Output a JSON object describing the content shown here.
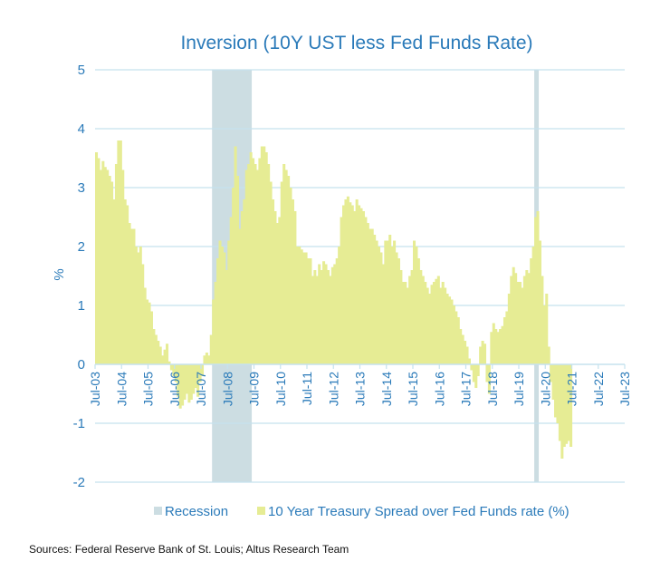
{
  "chart_data": {
    "type": "area",
    "title": "Inversion (10Y UST less Fed Funds Rate)",
    "xlabel": "",
    "ylabel": "%",
    "ylim": [
      -2,
      5
    ],
    "yticks": [
      "5",
      "4",
      "3",
      "2",
      "1",
      "0",
      "-1",
      "-2"
    ],
    "ytick_values": [
      5,
      4,
      3,
      2,
      1,
      0,
      -1,
      -2
    ],
    "grid": true,
    "legend_position": "bottom",
    "x_start": "2003-07",
    "x_end": "2023-07",
    "xtick_labels": [
      "Jul-03",
      "Jul-04",
      "Jul-05",
      "Jul-06",
      "Jul-07",
      "Jul-08",
      "Jul-09",
      "Jul-10",
      "Jul-11",
      "Jul-12",
      "Jul-13",
      "Jul-14",
      "Jul-15",
      "Jul-16",
      "Jul-17",
      "Jul-18",
      "Jul-19",
      "Jul-20",
      "Jul-21",
      "Jul-22",
      "Jul-23"
    ],
    "recessions": [
      {
        "name": "Recession",
        "start": "2007-12",
        "end": "2009-06"
      },
      {
        "name": "Recession",
        "start": "2020-02",
        "end": "2020-04"
      }
    ],
    "series": [
      {
        "name": "10 Year Treasury Spread over Fed Funds rate (%)",
        "color": "#e6ec94",
        "frequency": "monthly",
        "start": "2003-07",
        "values": [
          3.6,
          3.5,
          3.3,
          3.45,
          3.35,
          3.3,
          3.2,
          3.1,
          2.8,
          3.4,
          3.8,
          3.8,
          3.3,
          2.8,
          2.7,
          2.4,
          2.3,
          2.3,
          2.0,
          1.9,
          2.0,
          1.7,
          1.3,
          1.1,
          1.05,
          0.9,
          0.6,
          0.5,
          0.4,
          0.3,
          0.15,
          0.25,
          0.35,
          0.05,
          -0.1,
          -0.2,
          -0.3,
          -0.55,
          -0.75,
          -0.7,
          -0.6,
          -0.5,
          -0.65,
          -0.6,
          -0.5,
          -0.4,
          -0.55,
          -0.3,
          -0.2,
          0.15,
          0.2,
          0.15,
          0.5,
          1.1,
          1.4,
          1.8,
          2.1,
          2.0,
          1.9,
          1.6,
          2.1,
          2.5,
          3.0,
          3.7,
          3.2,
          2.3,
          2.6,
          2.8,
          3.3,
          3.4,
          3.6,
          3.5,
          3.4,
          3.3,
          3.5,
          3.7,
          3.7,
          3.6,
          3.4,
          3.1,
          2.8,
          2.6,
          2.4,
          2.5,
          3.1,
          3.4,
          3.3,
          3.2,
          3.0,
          2.8,
          2.6,
          2.0,
          2.0,
          1.95,
          1.9,
          1.9,
          1.8,
          1.8,
          1.5,
          1.6,
          1.5,
          1.7,
          1.6,
          1.75,
          1.7,
          1.6,
          1.5,
          1.65,
          1.7,
          1.8,
          2.0,
          2.5,
          2.7,
          2.8,
          2.85,
          2.75,
          2.7,
          2.6,
          2.8,
          2.7,
          2.65,
          2.6,
          2.5,
          2.4,
          2.3,
          2.3,
          2.2,
          2.1,
          2.0,
          1.9,
          1.7,
          2.1,
          2.1,
          2.2,
          2.0,
          2.1,
          1.9,
          1.8,
          1.6,
          1.4,
          1.4,
          1.3,
          1.5,
          1.6,
          2.1,
          2.0,
          1.8,
          1.6,
          1.5,
          1.4,
          1.3,
          1.2,
          1.35,
          1.4,
          1.45,
          1.5,
          1.3,
          1.4,
          1.3,
          1.2,
          1.15,
          1.1,
          1.0,
          0.9,
          0.8,
          0.6,
          0.5,
          0.4,
          0.3,
          0.1,
          -0.1,
          -0.3,
          -0.4,
          -0.2,
          0.3,
          0.4,
          0.35,
          -0.3,
          -0.5,
          0.55,
          0.7,
          0.6,
          0.55,
          0.6,
          0.65,
          0.8,
          0.9,
          1.2,
          1.5,
          1.65,
          1.55,
          1.4,
          1.4,
          1.3,
          1.5,
          1.6,
          1.55,
          1.8,
          2.0,
          2.5,
          2.6,
          2.1,
          1.5,
          1.0,
          1.2,
          0.3,
          -0.3,
          -0.6,
          -0.9,
          -1.0,
          -1.3,
          -1.6,
          -1.4,
          -1.35,
          -1.3,
          -1.4
        ]
      }
    ],
    "legend": [
      {
        "label": "Recession",
        "color": "#ccdde2"
      },
      {
        "label": "10 Year Treasury Spread over Fed Funds rate (%)",
        "color": "#e6ec94"
      }
    ],
    "source": "Sources: Federal Reserve Bank of St. Louis; Altus Research Team"
  },
  "colors": {
    "title": "#2a7ab9",
    "axis_text": "#2a7ab9",
    "grid": "#c5e2ee",
    "recession": "#ccdde2",
    "spread": "#e6ec94"
  }
}
